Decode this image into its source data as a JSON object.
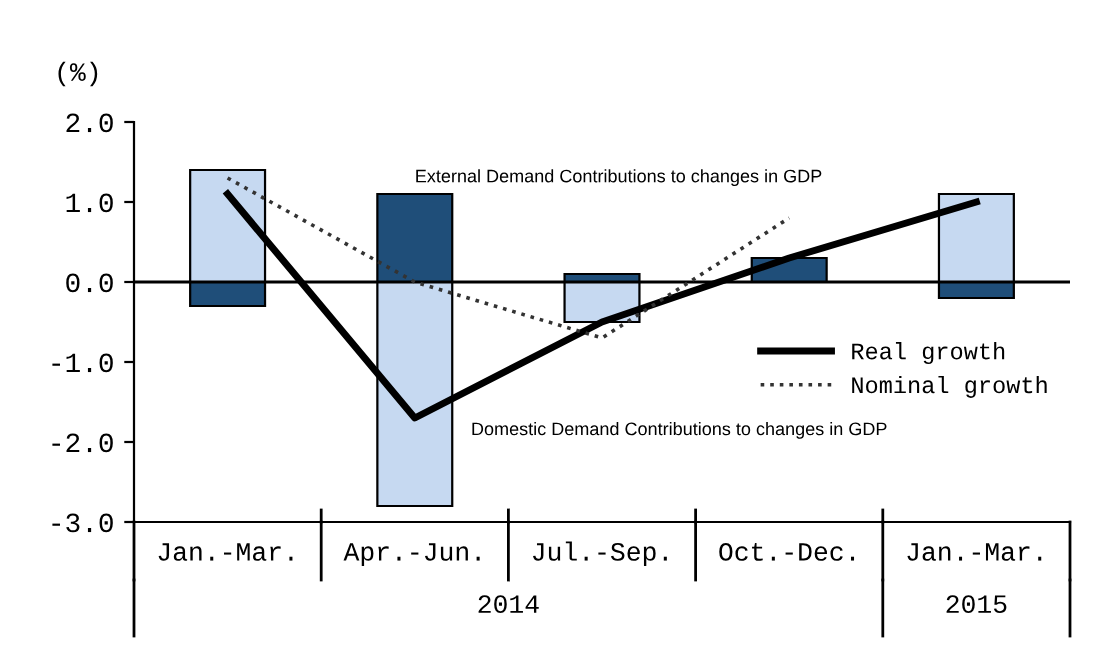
{
  "chart_data": {
    "type": "bar",
    "stacked": true,
    "ylabel": "(%)",
    "categories": [
      "Jan.-Mar.",
      "Apr.-Jun.",
      "Jul.-Sep.",
      "Oct.-Dec.",
      "Jan.-Mar."
    ],
    "series": [
      {
        "name": "Domestic Demand Contributions to changes in GDP",
        "color": "#c6d9f1",
        "values": [
          1.4,
          -2.8,
          -0.5,
          0.0,
          1.1
        ]
      },
      {
        "name": "External Demand Contributions to changes in GDP",
        "color": "#1f4e79",
        "values": [
          -0.3,
          1.1,
          0.1,
          0.3,
          -0.2
        ]
      },
      {
        "name": "Real growth",
        "type": "line",
        "color": "#000000",
        "line_style": "solid",
        "values": [
          1.1,
          -1.7,
          -0.5,
          0.3,
          1.0
        ]
      },
      {
        "name": "Nominal growth",
        "type": "line",
        "color": "#333333",
        "line_style": "dotted",
        "values": [
          1.3,
          0.0,
          -0.7,
          0.8,
          null
        ]
      }
    ],
    "ylim": [
      -3,
      2
    ],
    "yticks": [
      {
        "value": 2,
        "label": "2.0"
      },
      {
        "value": 1,
        "label": "1.0"
      },
      {
        "value": 0,
        "label": "0.0"
      },
      {
        "value": -1,
        "label": "-1.0"
      },
      {
        "value": -2,
        "label": "-2.0"
      },
      {
        "value": -3,
        "label": "-3.0"
      }
    ],
    "ref_lines": [
      {
        "axis": "y",
        "value": 0,
        "color": "#000000"
      }
    ],
    "annotations": [
      "2014",
      "2015"
    ],
    "grid": false,
    "legend": "right",
    "marker": "none"
  }
}
